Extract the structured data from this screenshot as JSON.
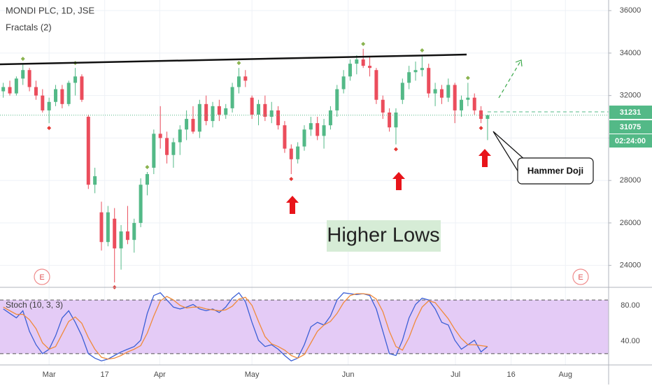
{
  "chart_data": {
    "type": "candlestick",
    "title": "MONDI PLC, 1D, JSE",
    "indicator": "Fractals (2)",
    "up_color": "#53b987",
    "down_color": "#eb4d5c",
    "xlim": [
      -0.5,
      92.5
    ],
    "xticks": [
      {
        "value": 7.0,
        "label": "Mar"
      },
      {
        "value": 15.5,
        "label": "17"
      },
      {
        "value": 23.9,
        "label": "Apr"
      },
      {
        "value": 38.0,
        "label": "May"
      },
      {
        "value": 52.7,
        "label": "Jun"
      },
      {
        "value": 69.1,
        "label": "Jul"
      },
      {
        "value": 77.6,
        "label": "16"
      },
      {
        "value": 85.9,
        "label": "Aug"
      }
    ],
    "ylim": [
      23000,
      36500
    ],
    "yticks": [
      24000,
      26000,
      28000,
      30000,
      32000,
      34000,
      36000
    ],
    "grid": true,
    "open": [
      32200,
      32400,
      32100,
      32800,
      33200,
      32400,
      32000,
      31300,
      31700,
      32300,
      31600,
      32600,
      32900,
      31000,
      27800,
      26500,
      25100,
      26200,
      24800,
      25600,
      25200,
      26000,
      27800,
      28600,
      30200,
      30000,
      29200,
      29800,
      30400,
      30900,
      30300,
      31600,
      30800,
      31500,
      31100,
      31400,
      32400,
      32900,
      31900,
      31100,
      31600,
      31000,
      31300,
      30600,
      29500,
      29000,
      29600,
      30400,
      30700,
      30100,
      30600,
      31300,
      32300,
      32900,
      33500,
      33700,
      33400,
      33200,
      31800,
      31200,
      30500,
      31800,
      32600,
      33100,
      33200,
      33300,
      32100,
      32300,
      31900,
      32500,
      31300,
      31800,
      31900,
      31300,
      30900
    ],
    "high": [
      32600,
      32700,
      32900,
      33500,
      33300,
      32700,
      32300,
      31900,
      32500,
      32500,
      32700,
      33300,
      33000,
      31100,
      28600,
      27000,
      26800,
      26700,
      25900,
      26800,
      26200,
      28100,
      28400,
      30400,
      31500,
      30300,
      30000,
      30600,
      31300,
      31500,
      31800,
      32000,
      31700,
      31800,
      31600,
      32600,
      33300,
      33200,
      32000,
      31800,
      32000,
      31700,
      31500,
      30800,
      29700,
      29800,
      30600,
      31000,
      31000,
      30900,
      31500,
      32500,
      33200,
      33700,
      33900,
      34200,
      33800,
      33300,
      32000,
      31400,
      31400,
      32800,
      33400,
      33600,
      33900,
      33500,
      32600,
      32500,
      32800,
      32600,
      32000,
      32600,
      32100,
      31500,
      31100
    ],
    "low": [
      31900,
      32000,
      32000,
      32500,
      32200,
      31800,
      31200,
      30700,
      31500,
      31400,
      31500,
      32000,
      31700,
      27600,
      27400,
      24700,
      24900,
      23200,
      23800,
      25000,
      24600,
      25800,
      27300,
      28300,
      29500,
      28800,
      28600,
      29200,
      29900,
      30200,
      30000,
      30600,
      30500,
      30800,
      30900,
      31200,
      32100,
      32400,
      30900,
      30600,
      30800,
      30700,
      30400,
      29300,
      28300,
      28800,
      29400,
      30100,
      29900,
      29500,
      30400,
      31000,
      32100,
      32700,
      33000,
      33300,
      32900,
      31600,
      30900,
      30300,
      29700,
      31600,
      32300,
      32700,
      32900,
      31900,
      31500,
      31600,
      31700,
      30700,
      31000,
      31500,
      31100,
      30700,
      29900
    ],
    "close": [
      32400,
      32100,
      32800,
      33200,
      32400,
      32000,
      31300,
      31700,
      32300,
      31600,
      32600,
      32900,
      31800,
      27800,
      28200,
      25100,
      26500,
      24800,
      25600,
      25200,
      26000,
      27800,
      28300,
      30200,
      30000,
      29200,
      29800,
      30400,
      30900,
      30300,
      31600,
      30800,
      31500,
      31100,
      31400,
      32400,
      32900,
      32700,
      31100,
      31600,
      31000,
      31300,
      30600,
      29500,
      29000,
      29600,
      30400,
      30700,
      30100,
      30600,
      31300,
      32300,
      32900,
      33500,
      33700,
      33400,
      33300,
      31800,
      31200,
      30500,
      31200,
      32600,
      33100,
      33200,
      33300,
      32100,
      32300,
      31900,
      32500,
      31300,
      31800,
      31900,
      31300,
      30900,
      31075
    ],
    "fractal_up_color": "#8ab34f",
    "fractal_down_color": "#e53935",
    "fractal_up_at": [
      3,
      11,
      22,
      36,
      55,
      64,
      71
    ],
    "fractal_down_at": [
      7,
      17,
      44,
      60,
      73
    ],
    "trendline": {
      "x": [
        -0.5,
        70.8
      ],
      "y": [
        33470,
        33930
      ],
      "color": "#111111"
    },
    "reference_line": 31231,
    "countdown": "02:24:00",
    "earnings_markers": [
      {
        "label": "E"
      },
      {
        "label": "E"
      }
    ],
    "annotations": {
      "higher_lows": "Higher Lows",
      "hammer": "Hammer Doji"
    },
    "stoch": {
      "label": "Stoch (10, 3, 3)",
      "ylim": [
        9,
        91
      ],
      "yticks": [
        {
          "value": 80,
          "label": "80.00"
        },
        {
          "value": 40,
          "label": "40.00"
        }
      ],
      "bands": [
        20,
        80
      ],
      "band_color": "#e4cbf6",
      "series": [
        {
          "color": "#3b5fd6",
          "values": [
            70,
            65,
            60,
            68,
            45,
            30,
            20,
            25,
            40,
            60,
            68,
            55,
            40,
            20,
            15,
            12,
            14,
            18,
            22,
            25,
            28,
            35,
            65,
            85,
            88,
            80,
            72,
            70,
            72,
            75,
            70,
            68,
            70,
            66,
            72,
            82,
            88,
            78,
            55,
            35,
            28,
            30,
            25,
            18,
            12,
            15,
            30,
            50,
            55,
            52,
            62,
            80,
            88,
            87,
            86,
            87,
            85,
            70,
            45,
            20,
            18,
            35,
            60,
            75,
            82,
            80,
            70,
            55,
            52,
            35,
            25,
            30,
            35,
            22,
            28
          ]
        },
        {
          "color": "#f08a3a",
          "values": [
            72,
            68,
            64,
            64,
            58,
            48,
            32,
            25,
            28,
            42,
            56,
            61,
            54,
            38,
            25,
            16,
            14,
            15,
            18,
            22,
            25,
            29,
            43,
            62,
            79,
            84,
            80,
            74,
            71,
            72,
            72,
            70,
            69,
            68,
            69,
            73,
            81,
            83,
            74,
            56,
            39,
            31,
            28,
            24,
            18,
            15,
            19,
            32,
            45,
            52,
            56,
            65,
            77,
            85,
            87,
            87,
            86,
            81,
            67,
            45,
            28,
            24,
            38,
            57,
            72,
            79,
            77,
            68,
            59,
            47,
            37,
            30,
            30,
            29,
            28
          ]
        }
      ]
    }
  }
}
